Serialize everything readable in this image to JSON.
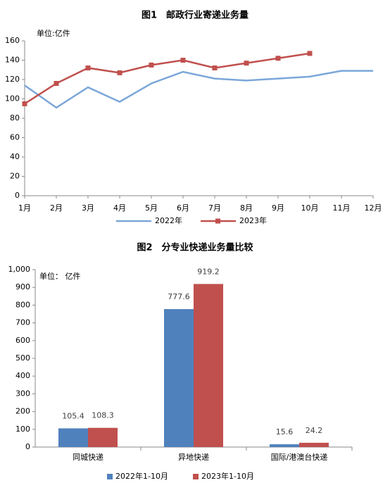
{
  "chart_data": [
    {
      "type": "line",
      "title": "图1　邮政行业寄递业务量",
      "annotation": "单位:亿件",
      "categories": [
        "1月",
        "2月",
        "3月",
        "4月",
        "5月",
        "6月",
        "7月",
        "8月",
        "9月",
        "10月",
        "11月",
        "12月"
      ],
      "series": [
        {
          "name": "2022年",
          "color": "#7ba7d9",
          "marker": false,
          "values": [
            114,
            91,
            112,
            97,
            116,
            128,
            121,
            119,
            121,
            123,
            129,
            129
          ]
        },
        {
          "name": "2023年",
          "color": "#c0504d",
          "marker": true,
          "values": [
            95,
            116,
            132,
            127,
            135,
            140,
            132,
            137,
            142,
            147,
            null,
            null
          ]
        }
      ],
      "ylim": [
        0,
        160
      ],
      "yticks": [
        0,
        20,
        40,
        60,
        80,
        100,
        120,
        140,
        160
      ],
      "grid": false,
      "legend": "bottom"
    },
    {
      "type": "bar",
      "title": "图2　分专业快递业务量比较",
      "annotation": "单位： 亿件",
      "categories": [
        "同城快递",
        "异地快递",
        "国际/港澳台快递"
      ],
      "series": [
        {
          "name": "2022年1-10月",
          "color": "#4f81bd",
          "values": [
            105.4,
            777.6,
            15.6
          ]
        },
        {
          "name": "2023年1-10月",
          "color": "#c0504d",
          "values": [
            108.3,
            919.2,
            24.2
          ]
        }
      ],
      "ylim": [
        0,
        1000
      ],
      "yticks": [
        0,
        100,
        200,
        300,
        400,
        500,
        600,
        700,
        800,
        900,
        {
          "value": 1000,
          "label": "1,000"
        }
      ],
      "grid": false,
      "legend": "bottom"
    }
  ]
}
